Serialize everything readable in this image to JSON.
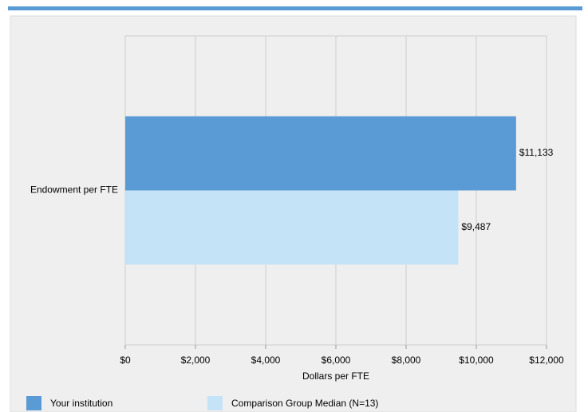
{
  "chart_data": {
    "type": "bar",
    "orientation": "horizontal",
    "categories": [
      "Endowment per FTE"
    ],
    "series": [
      {
        "name": "Your institution",
        "color": "#5b9bd5",
        "values": [
          11133
        ],
        "value_labels": [
          "$11,133"
        ]
      },
      {
        "name": "Comparison Group Median (N=13)",
        "color": "#c5e3f6",
        "values": [
          9487
        ],
        "value_labels": [
          "$9,487"
        ]
      }
    ],
    "xlabel": "Dollars per FTE",
    "xlim": [
      0,
      12000
    ],
    "xticks": [
      {
        "value": 0,
        "label": "$0"
      },
      {
        "value": 2000,
        "label": "$2,000"
      },
      {
        "value": 4000,
        "label": "$4,000"
      },
      {
        "value": 6000,
        "label": "$6,000"
      },
      {
        "value": 8000,
        "label": "$8,000"
      },
      {
        "value": 10000,
        "label": "$10,000"
      },
      {
        "value": 12000,
        "label": "$12,000"
      }
    ],
    "grid": true,
    "legend": "bottom"
  }
}
